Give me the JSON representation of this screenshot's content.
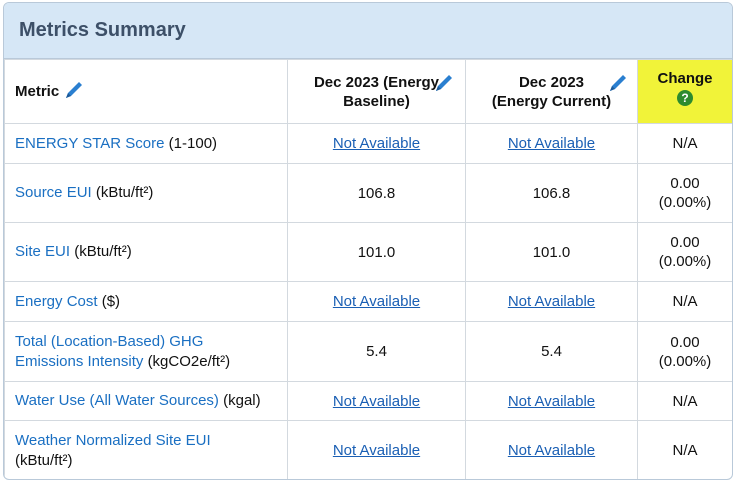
{
  "panel": {
    "title": "Metrics Summary"
  },
  "header": {
    "metric": "Metric",
    "baseline_line1": "Dec 2023 (Energy",
    "baseline_line2": "Baseline)",
    "current_line1": "Dec 2023",
    "current_line2": "(Energy Current)",
    "change": "Change",
    "change_help": "?"
  },
  "rows": [
    {
      "name": "ENERGY STAR Score",
      "unit": "(1-100)",
      "baseline": "Not Available",
      "current": "Not Available",
      "change_line1": "N/A",
      "change_line2": ""
    },
    {
      "name": "Source EUI",
      "unit": "(kBtu/ft²)",
      "baseline": "106.8",
      "current": "106.8",
      "change_line1": "0.00",
      "change_line2": "(0.00%)"
    },
    {
      "name": "Site EUI",
      "unit": "(kBtu/ft²)",
      "baseline": "101.0",
      "current": "101.0",
      "change_line1": "0.00",
      "change_line2": "(0.00%)"
    },
    {
      "name": "Energy Cost",
      "unit": "($)",
      "baseline": "Not Available",
      "current": "Not Available",
      "change_line1": "N/A",
      "change_line2": ""
    },
    {
      "name_line1": "Total (Location-Based) GHG",
      "name_line2": "Emissions Intensity",
      "unit": "(kgCO2e/ft²)",
      "baseline": "5.4",
      "current": "5.4",
      "change_line1": "0.00",
      "change_line2": "(0.00%)"
    },
    {
      "name": "Water Use (All Water Sources)",
      "unit": "(kgal)",
      "baseline": "Not Available",
      "current": "Not Available",
      "change_line1": "N/A",
      "change_line2": ""
    },
    {
      "name": "Weather Normalized Site EUI",
      "unit": "(kBtu/ft²)",
      "baseline": "Not Available",
      "current": "Not Available",
      "change_line1": "N/A",
      "change_line2": ""
    }
  ],
  "colors": {
    "header_bg": "#d6e7f6",
    "title": "#3d5068",
    "link": "#1a6fc2",
    "change_highlight": "#f1f339",
    "help_icon": "#2e8b2e",
    "pencil": "#2a7fd0"
  },
  "icons": {
    "edit": "pencil-icon",
    "help": "help-icon"
  }
}
